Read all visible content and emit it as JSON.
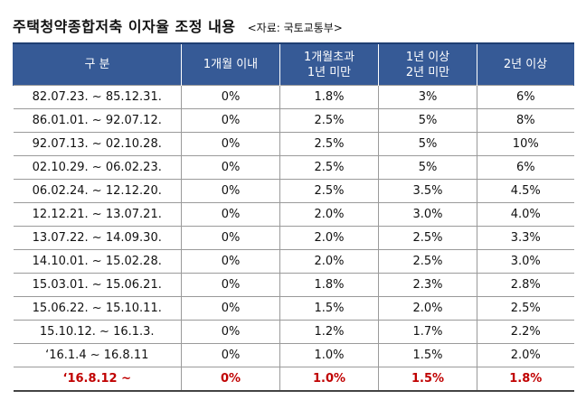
{
  "title": "주택청약종합저축 이자율 조정 내용",
  "source": "<자료: 국토교통부>",
  "table": {
    "headers": [
      {
        "line1": "구 분",
        "line2": ""
      },
      {
        "line1": "1개월 이내",
        "line2": ""
      },
      {
        "line1": "1개월초과",
        "line2": "1년 미만"
      },
      {
        "line1": "1년 이상",
        "line2": "2년 미만"
      },
      {
        "line1": "2년 이상",
        "line2": ""
      }
    ],
    "rows": [
      [
        "82.07.23. ~ 85.12.31.",
        "0%",
        "1.8%",
        "3%",
        "6%"
      ],
      [
        "86.01.01. ~ 92.07.12.",
        "0%",
        "2.5%",
        "5%",
        "8%"
      ],
      [
        "92.07.13. ~ 02.10.28.",
        "0%",
        "2.5%",
        "5%",
        "10%"
      ],
      [
        "02.10.29. ~ 06.02.23.",
        "0%",
        "2.5%",
        "5%",
        "6%"
      ],
      [
        "06.02.24. ~ 12.12.20.",
        "0%",
        "2.5%",
        "3.5%",
        "4.5%"
      ],
      [
        "12.12.21. ~ 13.07.21.",
        "0%",
        "2.0%",
        "3.0%",
        "4.0%"
      ],
      [
        "13.07.22. ~ 14.09.30.",
        "0%",
        "2.0%",
        "2.5%",
        "3.3%"
      ],
      [
        "14.10.01. ~ 15.02.28.",
        "0%",
        "2.0%",
        "2.5%",
        "3.0%"
      ],
      [
        "15.03.01. ~ 15.06.21.",
        "0%",
        "1.8%",
        "2.3%",
        "2.8%"
      ],
      [
        "15.06.22. ~ 15.10.11.",
        "0%",
        "1.5%",
        "2.0%",
        "2.5%"
      ],
      [
        "15.10.12. ~ 16.1.3.",
        "0%",
        "1.2%",
        "1.7%",
        "2.2%"
      ],
      [
        "‘16.1.4 ~ 16.8.11",
        "0%",
        "1.0%",
        "1.5%",
        "2.0%"
      ],
      [
        "‘16.8.12 ~",
        "0%",
        "1.0%",
        "1.5%",
        "1.8%"
      ]
    ]
  },
  "colors": {
    "header_bg": "#365a96",
    "highlight_text": "#c00000"
  }
}
